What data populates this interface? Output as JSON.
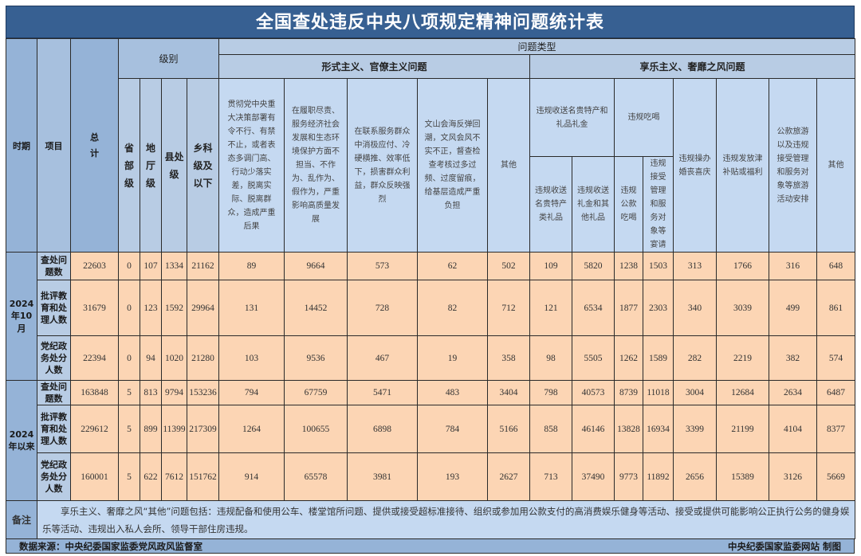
{
  "title": "全国查处违反中央八项规定精神问题统计表",
  "headers": {
    "period": "时期",
    "item": "项目",
    "total": "总计",
    "level": "级别",
    "levels": [
      "省部级",
      "地厅级",
      "县处级",
      "乡科级及以下"
    ],
    "problem_type": "问题类型",
    "formalism": "形式主义、官僚主义问题",
    "formalism_cols": [
      "贯彻党中央重大决策部署有令不行、有禁不止，或者表态多调门高、行动少落实差，脱离实际、脱离群众，造成严重后果",
      "在履职尽责、服务经济社会发展和生态环境保护方面不担当、不作为、乱作为、假作为，严重影响高质量发展",
      "在联系服务群众中消极应付、冷硬横推、效率低下，损害群众利益，群众反映强烈",
      "文山会海反弹回潮，文风会风不实不正，督查检查考核过多过频、过度留痕，给基层造成严重负担",
      "其他"
    ],
    "hedonism": "享乐主义、奢靡之风问题",
    "gifts": "违规收送名贵特产和礼品礼金",
    "gifts_sub": [
      "违规收送名贵特产类礼品",
      "违规收送礼金和其他礼品"
    ],
    "dining": "违规吃喝",
    "dining_sub": [
      "违规公款吃喝",
      "违规接受管理和服务对象等宴请"
    ],
    "hedonism_cols": [
      "违规操办婚丧喜庆",
      "违规发放津补贴或福利",
      "公款旅游以及违规接受管理和服务对象等旅游活动安排",
      "其他"
    ]
  },
  "groups": [
    {
      "period": "2024年10月",
      "rows": [
        {
          "item": "查处问题数",
          "values": [
            22603,
            0,
            107,
            1334,
            21162,
            89,
            9664,
            573,
            62,
            502,
            109,
            5820,
            1238,
            1503,
            313,
            1766,
            316,
            648
          ]
        },
        {
          "item": "批评教育和处理人数",
          "values": [
            31679,
            0,
            123,
            1592,
            29964,
            131,
            14452,
            728,
            82,
            712,
            121,
            6534,
            1877,
            2303,
            340,
            3039,
            499,
            861
          ]
        },
        {
          "item": "党纪政务处分人数",
          "values": [
            22394,
            0,
            94,
            1020,
            21280,
            103,
            9536,
            467,
            19,
            358,
            98,
            5505,
            1262,
            1589,
            282,
            2219,
            382,
            574
          ]
        }
      ]
    },
    {
      "period": "2024年以来",
      "rows": [
        {
          "item": "查处问题数",
          "values": [
            163848,
            5,
            813,
            9794,
            153236,
            794,
            67759,
            5471,
            483,
            3404,
            798,
            40573,
            8739,
            11018,
            3004,
            12684,
            2634,
            6487
          ]
        },
        {
          "item": "批评教育和处理人数",
          "values": [
            229612,
            5,
            899,
            11399,
            217309,
            1264,
            100655,
            6898,
            784,
            5166,
            858,
            46146,
            13828,
            16934,
            3399,
            21199,
            4104,
            8377
          ]
        },
        {
          "item": "党纪政务处分人数",
          "values": [
            160001,
            5,
            622,
            7612,
            151762,
            914,
            65578,
            3981,
            193,
            2627,
            713,
            37490,
            9773,
            11892,
            2656,
            15389,
            3126,
            5669
          ]
        }
      ]
    }
  ],
  "note": {
    "label": "备注",
    "text": "享乐主义、奢靡之风“其他”问题包括：违规配备和使用公车、楼堂馆所问题、提供或接受超标准接待、组织或参加用公款支付的高消费娱乐健身等活动、接受或提供可能影响公正执行公务的健身娱乐等活动、违规出入私人会所、领导干部住房违规。"
  },
  "footer": {
    "source": "数据来源：中央纪委国家监委党风政风监督室",
    "credit": "中央纪委国家监委网站 制图"
  },
  "colors": {
    "title_bg": "#376092",
    "header_bg": "#b8cce4",
    "data_bg": "#fcd5b4"
  }
}
